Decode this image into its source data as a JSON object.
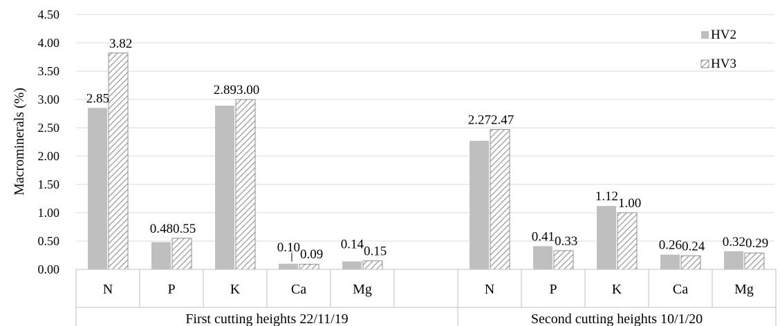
{
  "chart_data": {
    "type": "bar",
    "title": "",
    "ylabel": "Macrominerals (%)",
    "ylim": [
      0,
      4.5
    ],
    "ytick_step": 0.5,
    "ytick_labels": [
      "0.00",
      "0.50",
      "1.00",
      "1.50",
      "2.00",
      "2.50",
      "3.00",
      "3.50",
      "4.00",
      "4.50"
    ],
    "grid": true,
    "legend_position": "top-right",
    "groups": [
      {
        "label": "First cutting heights 22/11/19",
        "categories": [
          "N",
          "P",
          "K",
          "Ca",
          "Mg"
        ]
      },
      {
        "label": "Second cutting heights 10/1/20",
        "categories": [
          "N",
          "P",
          "K",
          "Ca",
          "Mg"
        ]
      }
    ],
    "series": [
      {
        "name": "HV2",
        "color": "#bfbfbf",
        "pattern": "solid",
        "values": [
          2.85,
          0.48,
          2.89,
          0.1,
          0.14,
          2.27,
          0.41,
          1.12,
          0.26,
          0.32
        ],
        "labels": [
          "2.85",
          "0.48",
          "2.89",
          "0.10",
          "0.14",
          "2.27",
          "0.41",
          "1.12",
          "0.26",
          "0.32"
        ]
      },
      {
        "name": "HV3",
        "color": "#a6a6a6",
        "pattern": "diagonal-hatch",
        "values": [
          3.82,
          0.55,
          3.0,
          0.09,
          0.15,
          2.47,
          0.33,
          1.0,
          0.24,
          0.29
        ],
        "labels": [
          "3.82",
          "0.55",
          "3.00",
          "0.09",
          "0.15",
          "2.47",
          "0.33",
          "1.00",
          "0.24",
          "0.29"
        ]
      }
    ]
  }
}
